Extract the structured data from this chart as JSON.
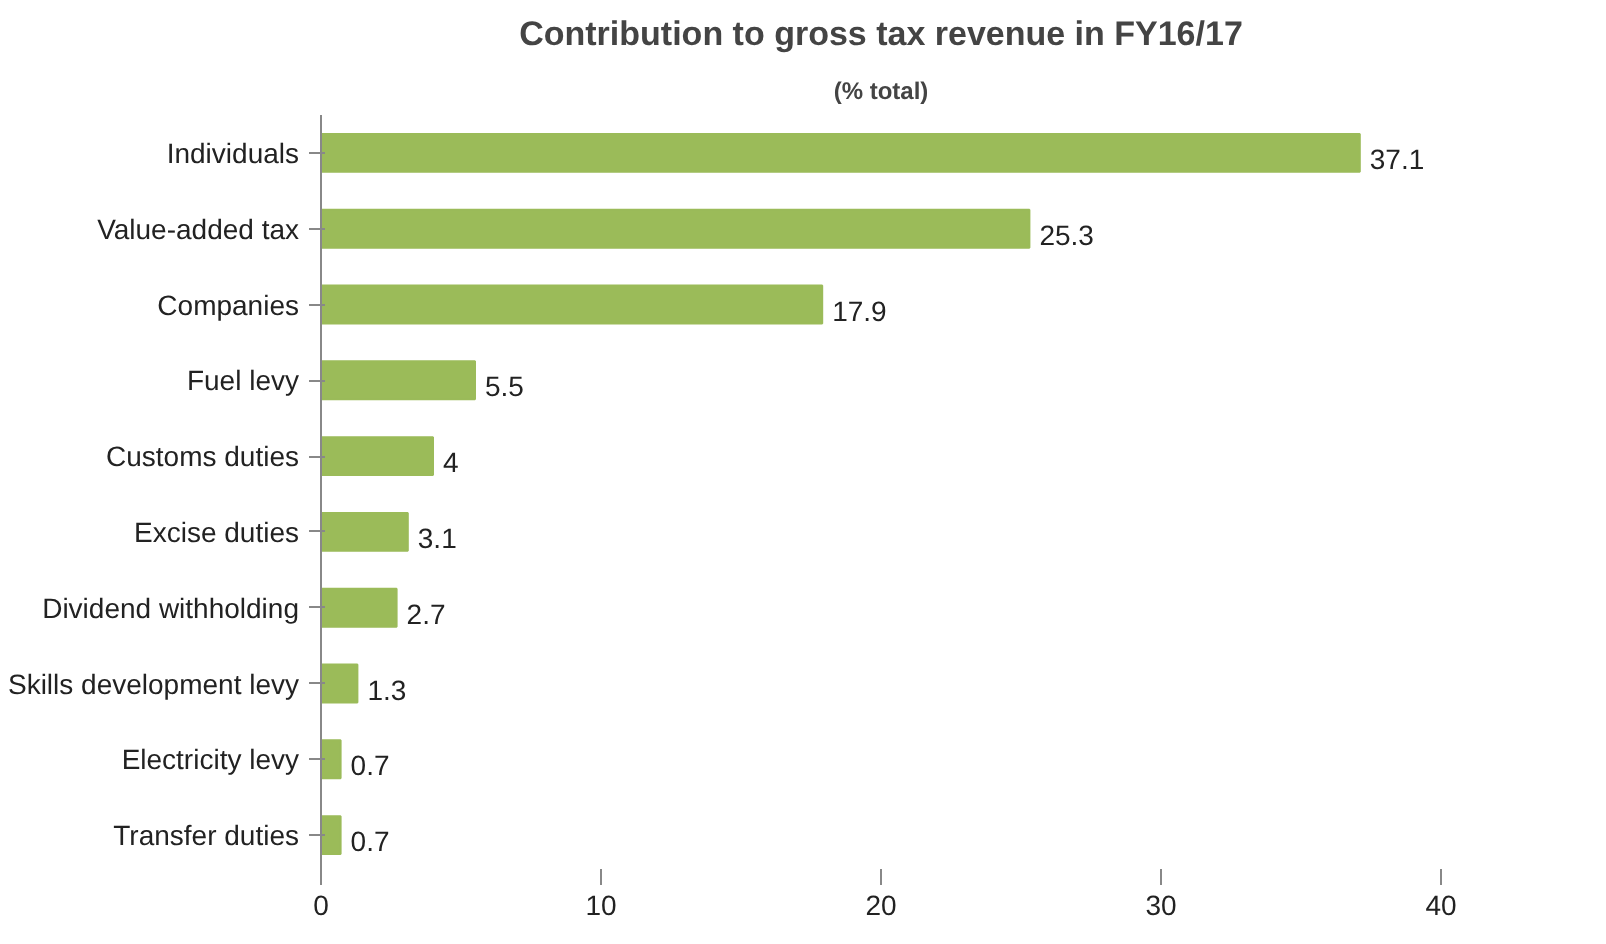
{
  "chart_data": {
    "type": "bar",
    "orientation": "horizontal",
    "title": "Contribution to gross tax revenue in FY16/17",
    "subtitle": "(% total)",
    "categories": [
      "Individuals",
      "Value-added tax",
      "Companies",
      "Fuel levy",
      "Customs duties",
      "Excise duties",
      "Dividend withholding",
      "Skills development levy",
      "Electricity levy",
      "Transfer duties"
    ],
    "values": [
      37.1,
      25.3,
      17.9,
      5.5,
      4,
      3.1,
      2.7,
      1.3,
      0.7,
      0.7
    ],
    "color": "#9bbb59",
    "xlim": [
      0,
      40
    ],
    "xticks": [
      0,
      10,
      20,
      30,
      40
    ],
    "grid": false,
    "data_labels": true
  }
}
